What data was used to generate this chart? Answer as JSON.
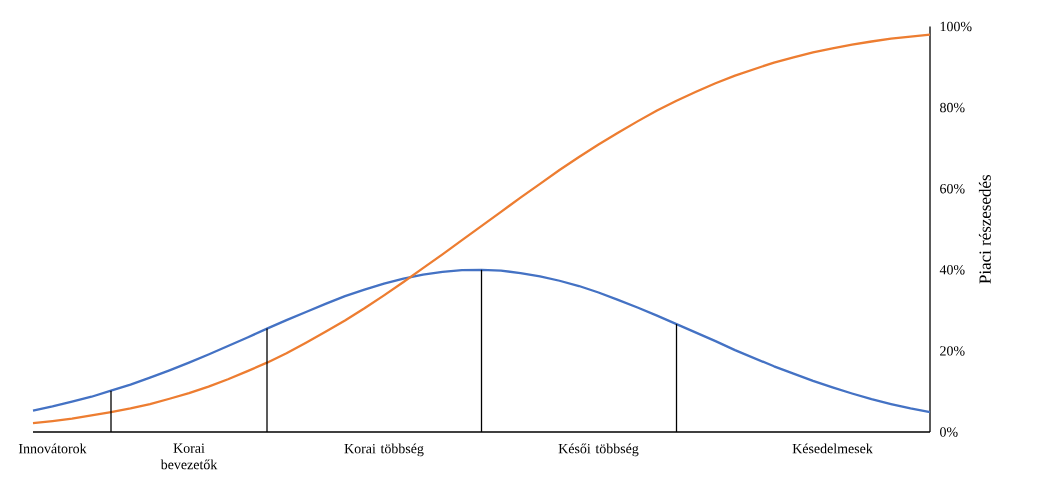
{
  "chart_data": {
    "type": "line",
    "ylabel": "Piaci részesedés",
    "categories": [
      null,
      "Innovátorok",
      null,
      null,
      null,
      null,
      null,
      null,
      "Korai bevezetők",
      null,
      null,
      null,
      null,
      null,
      null,
      null,
      null,
      null,
      "Korai többség",
      null,
      null,
      null,
      null,
      null,
      null,
      null,
      null,
      null,
      null,
      "Késői többség",
      null,
      null,
      null,
      null,
      null,
      null,
      null,
      null,
      null,
      null,
      null,
      "Késedelmesek",
      null,
      null,
      null,
      null,
      null
    ],
    "series": [
      {
        "color": "#4472c4",
        "values": [
          5.3,
          6.3,
          7.5,
          8.7,
          10.2,
          11.7,
          13.4,
          15.2,
          17.1,
          19.1,
          21.2,
          23.3,
          25.5,
          27.6,
          29.6,
          31.6,
          33.5,
          35.1,
          36.6,
          37.8,
          38.8,
          39.5,
          39.9,
          40.0,
          39.8,
          39.2,
          38.4,
          37.3,
          36.0,
          34.4,
          32.6,
          30.7,
          28.7,
          26.6,
          24.5,
          22.4,
          20.2,
          18.2,
          16.2,
          14.4,
          12.6,
          11.0,
          9.5,
          8.1,
          6.9,
          5.8,
          4.9
        ]
      },
      {
        "color": "#ed7d31",
        "values": [
          2.2,
          2.7,
          3.3,
          4.1,
          4.9,
          5.8,
          6.9,
          8.2,
          9.6,
          11.2,
          13.0,
          15.0,
          17.1,
          19.4,
          22.0,
          24.7,
          27.5,
          30.5,
          33.7,
          37.0,
          40.4,
          43.8,
          47.3,
          50.8,
          54.3,
          57.8,
          61.2,
          64.6,
          67.8,
          70.9,
          73.8,
          76.6,
          79.3,
          81.7,
          83.9,
          86.0,
          87.9,
          89.5,
          91.1,
          92.4,
          93.6,
          94.6,
          95.5,
          96.3,
          97.0,
          97.5,
          98.0
        ]
      },
      {
        "type": "bar",
        "color": "#000000",
        "values": [
          null,
          null,
          null,
          null,
          10.2,
          null,
          null,
          null,
          null,
          null,
          null,
          null,
          25.5,
          null,
          null,
          null,
          null,
          null,
          null,
          null,
          null,
          null,
          null,
          40.0,
          null,
          null,
          null,
          null,
          null,
          null,
          null,
          null,
          null,
          26.6,
          null,
          null,
          null,
          null,
          null,
          null,
          null,
          null,
          null,
          null,
          null,
          null,
          null
        ]
      }
    ],
    "ylim": [
      0,
      100
    ],
    "yticks": [
      {
        "value": 0,
        "label": "0%"
      },
      {
        "value": 20,
        "label": "20%"
      },
      {
        "value": 40,
        "label": "40%"
      },
      {
        "value": 60,
        "label": "60%"
      },
      {
        "value": 80,
        "label": "80%"
      },
      {
        "value": 100,
        "label": "100%"
      }
    ]
  }
}
